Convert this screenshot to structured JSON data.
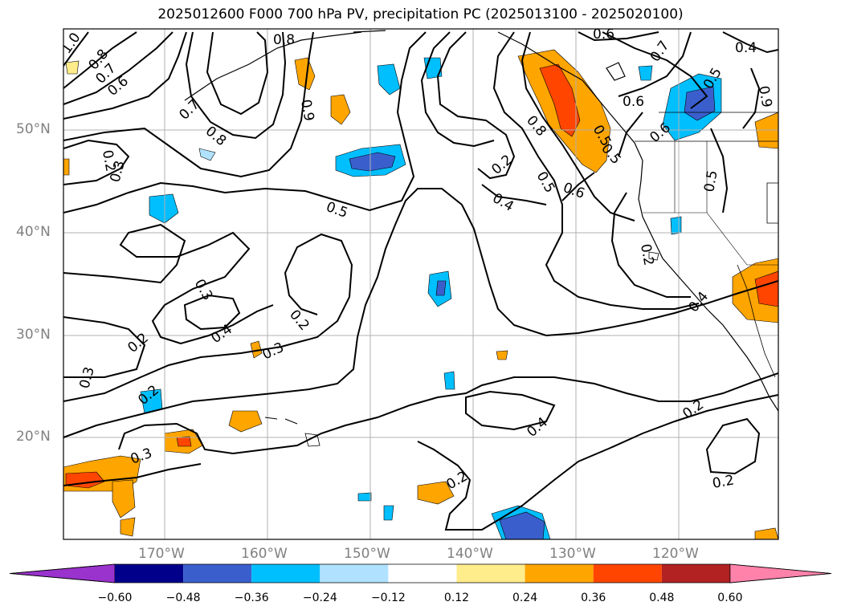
{
  "title": "2025012600 F000 700 hPa PV, precipitation PC (2025013100 - 2025020100)",
  "lat_labels": [
    "50°N",
    "40°N",
    "30°N",
    "20°N"
  ],
  "lon_labels": [
    "170°W",
    "160°W",
    "150°W",
    "140°W",
    "130°W",
    "120°W"
  ],
  "contour_labels": [
    "1.0",
    "0.8",
    "0.7",
    "0.6",
    "0.5",
    "0.8",
    "0.6",
    "0.7",
    "0.8",
    "0.2",
    "0.3",
    "0.5",
    "0.3",
    "0.2",
    "0.4",
    "0.3",
    "0.2",
    "0.3",
    "0.2",
    "0.3",
    "0.3",
    "0.8",
    "0.6",
    "0.5",
    "0.6",
    "0.4",
    "0.2",
    "0.4",
    "0.2",
    "0.6",
    "0.7",
    "0.6",
    "0.4",
    "0.9",
    "0.5",
    "0.4",
    "0.2",
    "0.2",
    "0.6"
  ],
  "colorbar": {
    "ticks": [
      "−0.60",
      "−0.48",
      "−0.36",
      "−0.24",
      "−0.12",
      "0.12",
      "0.24",
      "0.36",
      "0.48",
      "0.60"
    ],
    "colors": [
      "#9a32cd",
      "#00008b",
      "#3a5fcd",
      "#00bfff",
      "#b0e2ff",
      "#ffffff",
      "#ffec8b",
      "#ffa500",
      "#ff4500",
      "#b22222",
      "#ff82ab"
    ]
  }
}
